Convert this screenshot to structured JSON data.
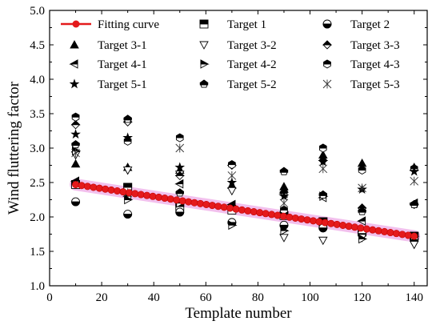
{
  "chart_data": {
    "type": "scatter",
    "title": "",
    "xlabel": "Template number",
    "ylabel": "Wind fluttering factor",
    "xlim": [
      0,
      145
    ],
    "ylim": [
      1.0,
      5.0
    ],
    "xticks": [
      0,
      20,
      40,
      60,
      80,
      100,
      120,
      140
    ],
    "yticks": [
      1.0,
      1.5,
      2.0,
      2.5,
      3.0,
      3.5,
      4.0,
      4.5,
      5.0
    ],
    "yticks_labels": [
      "1.0",
      "1.5",
      "2.0",
      "2.5",
      "3.0",
      "3.5",
      "4.0",
      "4.5",
      "5.0"
    ],
    "grid": false,
    "legend_position": "top",
    "fitting_curve": {
      "name": "Fitting curve",
      "color": "#e41a1c",
      "band_color": "#e98ee0",
      "x_start": 10,
      "x_end": 140,
      "y_start": 2.47,
      "y_end": 1.72,
      "points": 58
    },
    "categories_x": [
      10,
      30,
      50,
      70,
      90,
      105,
      120,
      140
    ],
    "series": [
      {
        "name": "Target 1",
        "marker": "square-half-top",
        "values": [
          2.47,
          2.43,
          2.15,
          2.1,
          2.02,
          1.93,
          1.78,
          1.72
        ]
      },
      {
        "name": "Target 2",
        "marker": "circle-half-bottom",
        "values": [
          2.22,
          2.04,
          2.07,
          1.92,
          1.88,
          1.84,
          1.76,
          1.67
        ]
      },
      {
        "name": "Target 3-1",
        "marker": "triangle-up",
        "values": [
          2.77,
          2.72,
          2.68,
          2.46,
          2.44,
          2.9,
          2.78,
          2.72
        ]
      },
      {
        "name": "Target 3-2",
        "marker": "triangle-down",
        "values": [
          2.9,
          2.68,
          2.62,
          2.38,
          1.7,
          1.66,
          1.7,
          1.6
        ]
      },
      {
        "name": "Target 3-3",
        "marker": "diamond-half",
        "values": [
          3.34,
          3.38,
          2.6,
          2.75,
          2.36,
          2.82,
          2.13,
          2.18
        ]
      },
      {
        "name": "Target 4-1",
        "marker": "triangle-left",
        "values": [
          2.52,
          2.3,
          2.48,
          2.18,
          2.34,
          2.28,
          1.94,
          2.2
        ]
      },
      {
        "name": "Target 4-2",
        "marker": "triangle-right",
        "values": [
          2.96,
          2.25,
          2.2,
          1.88,
          1.8,
          2.3,
          1.68,
          1.72
        ]
      },
      {
        "name": "Target 4-3",
        "marker": "hexagon-half",
        "values": [
          3.45,
          3.1,
          3.15,
          2.76,
          2.1,
          3.0,
          2.68,
          2.7
        ]
      },
      {
        "name": "Target 5-1",
        "marker": "star",
        "values": [
          3.2,
          3.15,
          2.72,
          2.5,
          2.3,
          2.8,
          2.4,
          2.66
        ]
      },
      {
        "name": "Target 5-2",
        "marker": "pentagon-half",
        "values": [
          3.05,
          3.42,
          2.35,
          2.15,
          2.66,
          2.32,
          2.08,
          2.18
        ]
      },
      {
        "name": "Target 5-3",
        "marker": "asterisk",
        "values": [
          2.93,
          2.35,
          3.0,
          2.6,
          2.2,
          2.7,
          2.42,
          2.52
        ]
      }
    ]
  }
}
